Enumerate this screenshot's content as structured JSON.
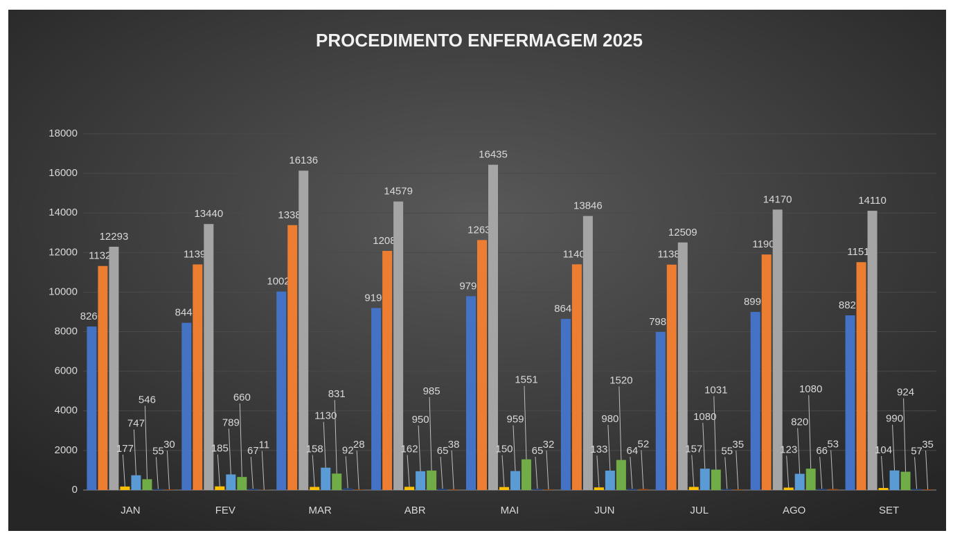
{
  "chart_data": {
    "type": "bar",
    "title": "PROCEDIMENTO ENFERMAGEM 2025",
    "categories": [
      "JAN",
      "FEV",
      "MAR",
      "ABR",
      "MAI",
      "JUN",
      "JUL",
      "AGO",
      "SET"
    ],
    "series": [
      {
        "color": "#4472c4",
        "values": [
          8260,
          8449,
          10029,
          9195,
          9791,
          8645,
          7989,
          8999,
          8826
        ]
      },
      {
        "color": "#ed7d31",
        "values": [
          11320,
          11399,
          13384,
          12082,
          12630,
          11405,
          11389,
          11900,
          11513
        ]
      },
      {
        "color": "#a5a5a5",
        "values": [
          12293,
          13440,
          16136,
          14579,
          16435,
          13846,
          12509,
          14170,
          14110
        ]
      },
      {
        "color": "#ffc000",
        "values": [
          177,
          185,
          158,
          162,
          150,
          133,
          157,
          123,
          104
        ]
      },
      {
        "color": "#5b9bd5",
        "values": [
          747,
          789,
          1130,
          950,
          959,
          980,
          1080,
          820,
          990
        ]
      },
      {
        "color": "#70ad47",
        "values": [
          546,
          660,
          831,
          985,
          1551,
          1520,
          1031,
          1080,
          924
        ]
      },
      {
        "color": "#264478",
        "values": [
          55,
          67,
          92,
          65,
          65,
          64,
          55,
          66,
          57
        ]
      },
      {
        "color": "#9e480e",
        "values": [
          30,
          11,
          28,
          38,
          32,
          52,
          35,
          53,
          35
        ]
      }
    ],
    "ylim": [
      0,
      18000
    ],
    "yticks": [
      0,
      2000,
      4000,
      6000,
      8000,
      10000,
      12000,
      14000,
      16000,
      18000
    ],
    "grid": true
  }
}
